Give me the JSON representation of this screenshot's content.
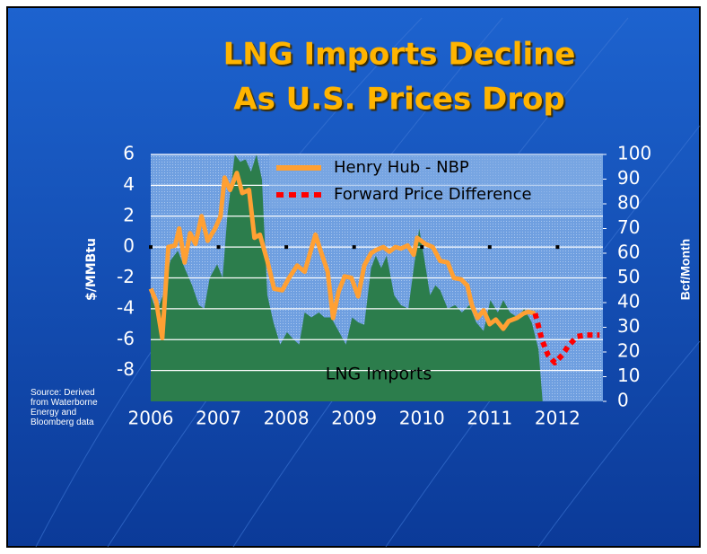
{
  "chart_data": {
    "type": "line",
    "title": [
      "LNG Imports Decline",
      "As U.S. Prices Drop"
    ],
    "y_label": "$/MMBtu",
    "y2_label": "Bcf/Month",
    "source": "Source: Derived from Waterborne Energy and Bloomberg data",
    "xlim": [
      2006,
      2012.67
    ],
    "xticks": [
      2006,
      2007,
      2008,
      2009,
      2010,
      2011,
      2012
    ],
    "ylim": [
      -10,
      6
    ],
    "yticks": [
      6,
      4,
      2,
      0,
      -2,
      -4,
      -6,
      -8
    ],
    "y2lim": [
      0,
      100
    ],
    "y2ticks": [
      100,
      90,
      80,
      70,
      60,
      50,
      40,
      30,
      20,
      10,
      0
    ],
    "grid": true,
    "series": [
      {
        "name": "Henry Hub - NBP",
        "color": "#ffa033",
        "style": "solid",
        "x": [
          2006.0,
          2006.08,
          2006.17,
          2006.26,
          2006.36,
          2006.42,
          2006.5,
          2006.58,
          2006.66,
          2006.75,
          2006.84,
          2006.95,
          2007.03,
          2007.09,
          2007.17,
          2007.27,
          2007.35,
          2007.45,
          2007.53,
          2007.61,
          2007.72,
          2007.82,
          2007.94,
          2008.04,
          2008.16,
          2008.27,
          2008.35,
          2008.43,
          2008.51,
          2008.61,
          2008.69,
          2008.77,
          2008.86,
          2008.96,
          2009.06,
          2009.15,
          2009.25,
          2009.32,
          2009.43,
          2009.52,
          2009.61,
          2009.69,
          2009.79,
          2009.88,
          2009.93,
          2010.05,
          2010.16,
          2010.27,
          2010.38,
          2010.47,
          2010.58,
          2010.67,
          2010.74,
          2010.82,
          2010.91,
          2011.0,
          2011.09,
          2011.2,
          2011.28,
          2011.4,
          2011.5,
          2011.57,
          2011.67
        ],
        "values": [
          -2.7,
          -3.5,
          -5.9,
          0,
          0.1,
          1.2,
          -1,
          0.9,
          0.2,
          2,
          0.4,
          1.2,
          2,
          4.5,
          3.7,
          4.8,
          3.5,
          3.7,
          0.6,
          0.8,
          -0.9,
          -2.7,
          -2.8,
          -2,
          -1.2,
          -1.6,
          -0.4,
          0.8,
          -0.3,
          -1.6,
          -4.6,
          -2.9,
          -1.9,
          -2,
          -3.2,
          -1.2,
          -0.4,
          -0.2,
          0,
          -0.3,
          0,
          -0.1,
          0.1,
          -0.5,
          0.6,
          0.2,
          0,
          -0.9,
          -1,
          -2,
          -2.1,
          -2.5,
          -3.8,
          -4.6,
          -4.1,
          -5,
          -4.7,
          -5.3,
          -4.8,
          -4.6,
          -4.3,
          -4.2,
          -4.3
        ]
      },
      {
        "name": "Forward Price Difference",
        "color": "#ff0000",
        "style": "dotted",
        "x": [
          2011.67,
          2011.77,
          2011.86,
          2011.96,
          2012.07,
          2012.16,
          2012.29,
          2012.42,
          2012.62
        ],
        "values": [
          -4.3,
          -6,
          -7,
          -7.5,
          -7,
          -6.4,
          -5.8,
          -5.7,
          -5.7
        ]
      },
      {
        "name": "LNG Imports",
        "color": "#2c7d4c",
        "style": "area",
        "axis": "y2",
        "x": [
          2006.0,
          2006.09,
          2006.18,
          2006.29,
          2006.4,
          2006.5,
          2006.61,
          2006.71,
          2006.79,
          2006.87,
          2006.98,
          2007.06,
          2007.13,
          2007.24,
          2007.32,
          2007.4,
          2007.48,
          2007.56,
          2007.64,
          2007.72,
          2007.81,
          2007.91,
          2008.01,
          2008.11,
          2008.19,
          2008.27,
          2008.37,
          2008.48,
          2008.56,
          2008.66,
          2008.77,
          2008.88,
          2008.97,
          2009.06,
          2009.15,
          2009.25,
          2009.32,
          2009.4,
          2009.48,
          2009.59,
          2009.69,
          2009.8,
          2009.88,
          2009.96,
          2010.04,
          2010.12,
          2010.2,
          2010.27,
          2010.38,
          2010.49,
          2010.59,
          2010.7,
          2010.8,
          2010.91,
          2011.01,
          2011.12,
          2011.2,
          2011.3,
          2011.41,
          2011.51,
          2011.62,
          2011.72,
          2011.78
        ],
        "values": [
          43,
          36,
          43,
          57,
          61,
          54,
          47,
          39,
          37.5,
          50,
          55.5,
          50,
          75,
          100,
          97,
          98,
          93,
          100,
          90,
          43,
          32,
          23,
          28,
          25,
          23,
          36,
          34,
          36,
          34,
          34,
          28.5,
          23,
          34,
          32,
          31,
          54,
          59,
          54,
          59,
          43,
          39,
          37.5,
          54,
          70,
          57,
          43,
          47,
          45,
          37.5,
          39,
          36,
          39,
          32,
          28.5,
          41,
          36,
          41,
          36,
          34,
          37.5,
          32,
          21,
          0
        ]
      }
    ]
  }
}
